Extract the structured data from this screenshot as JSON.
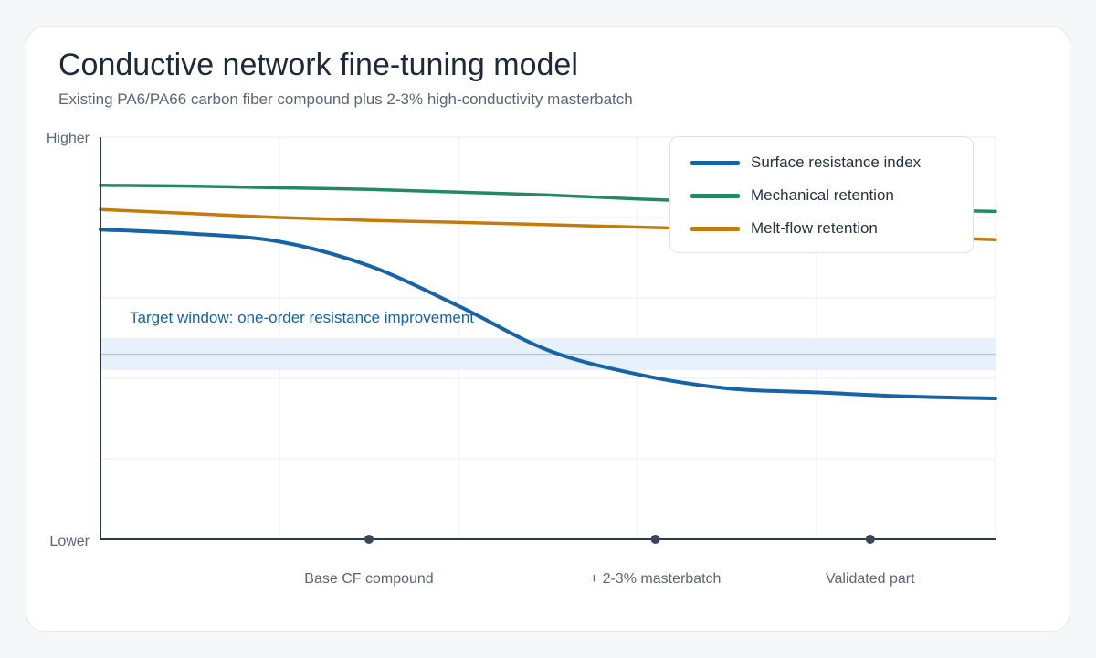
{
  "title": "Conductive network fine-tuning model",
  "subtitle": "Existing PA6/PA66 carbon fiber compound plus 2-3% high-conductivity masterbatch",
  "colors": {
    "surface": "#1663a6",
    "mechanical": "#23895f",
    "meltflow": "#c27c0e",
    "band": "#e6f1fb",
    "band_line": "#9bbfdc",
    "axis": "#2b3a4b",
    "grid": "#eceef1"
  },
  "chart_data": {
    "type": "line",
    "title": "Conductive network fine-tuning model",
    "subtitle": "Existing PA6/PA66 carbon fiber compound plus 2-3% high-conductivity masterbatch",
    "ylabel_top": "Higher",
    "ylabel_bottom": "Lower",
    "ylim": [
      0,
      100
    ],
    "xlim": [
      0,
      100
    ],
    "grid": true,
    "legend_position": "top-right",
    "markers": [
      {
        "x": 30,
        "label": "Base CF compound"
      },
      {
        "x": 62,
        "label": "+ 2-3% masterbatch"
      },
      {
        "x": 86,
        "label": "Validated part"
      }
    ],
    "target_band": {
      "label": "Target window: one-order resistance improvement",
      "y_min": 42,
      "y_max": 50,
      "y_center": 46
    },
    "series": [
      {
        "name": "Surface resistance index",
        "key": "surface",
        "x": [
          0,
          10,
          20,
          30,
          40,
          50,
          60,
          70,
          80,
          90,
          100
        ],
        "values": [
          77,
          76,
          74,
          68,
          58,
          47,
          41,
          37.5,
          36.5,
          35.5,
          35
        ]
      },
      {
        "name": "Mechanical retention",
        "key": "mechanical",
        "x": [
          0,
          10,
          20,
          30,
          40,
          50,
          60,
          70,
          80,
          90,
          100
        ],
        "values": [
          88,
          87.8,
          87.4,
          87,
          86.3,
          85.6,
          84.6,
          83.8,
          82.9,
          82.0,
          81.5
        ]
      },
      {
        "name": "Melt-flow retention",
        "key": "meltflow",
        "x": [
          0,
          10,
          20,
          30,
          40,
          50,
          60,
          70,
          80,
          90,
          100
        ],
        "values": [
          82,
          81,
          80,
          79.3,
          78.8,
          78.2,
          77.6,
          77,
          76.2,
          75.3,
          74.5
        ]
      }
    ]
  }
}
